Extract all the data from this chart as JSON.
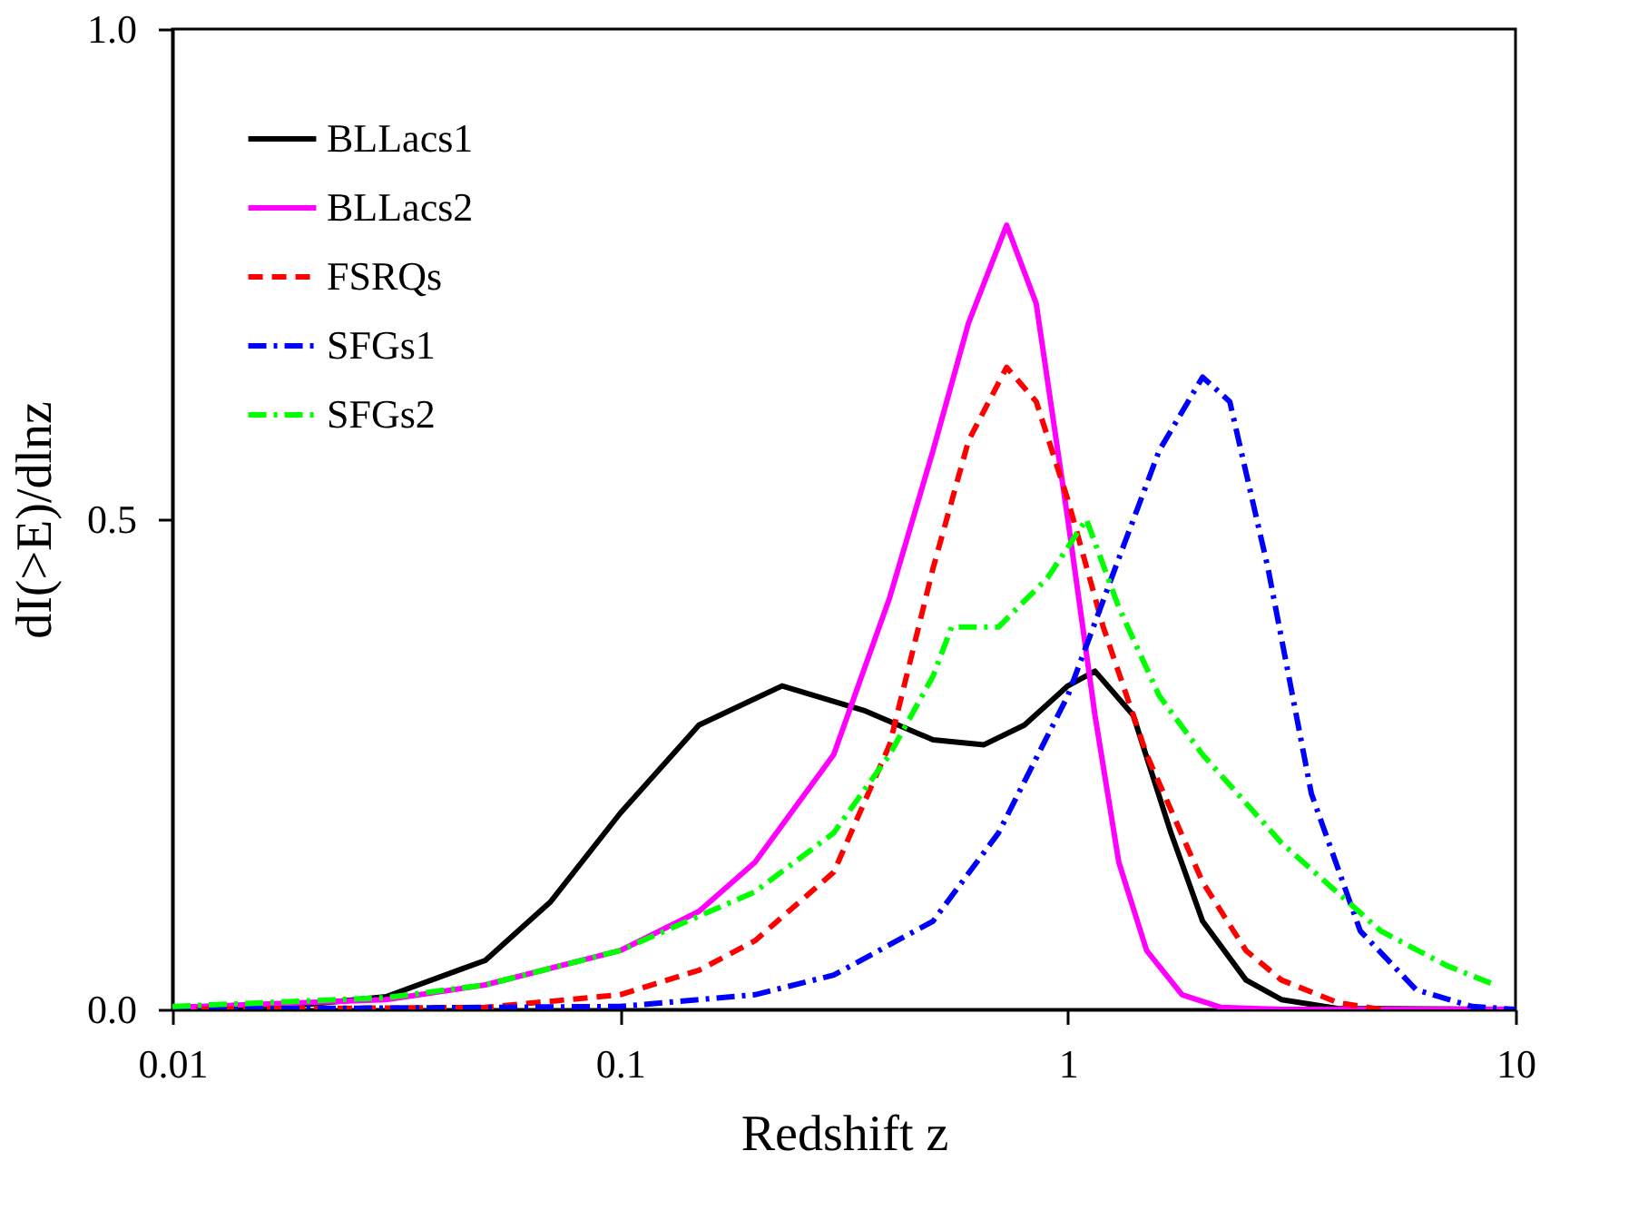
{
  "chart_data": {
    "type": "line",
    "xlabel": "Redshift z",
    "ylabel": "dI(>E)/dlnz",
    "log": "x",
    "xlim": [
      0.01,
      10
    ],
    "xticks": [
      0.01,
      0.1,
      1,
      10
    ],
    "ylim": [
      0,
      1.0
    ],
    "yticks": [
      {
        "value": 0,
        "label": "0.0"
      },
      {
        "value": 0.5,
        "label": "0.5"
      },
      {
        "value": 1.0,
        "label": "1.0"
      }
    ],
    "grid": false,
    "legend": "top left",
    "marker": "none",
    "series": [
      {
        "name": "BLLacs1",
        "color": "#000000",
        "line_style": "solid",
        "x": [
          0.01,
          0.02,
          0.03,
          0.05,
          0.07,
          0.1,
          0.15,
          0.23,
          0.35,
          0.5,
          0.65,
          0.8,
          1.0,
          1.15,
          1.4,
          1.7,
          2,
          2.5,
          3,
          4,
          10
        ],
        "values": [
          0.002,
          0.005,
          0.013,
          0.05,
          0.11,
          0.2,
          0.29,
          0.33,
          0.305,
          0.275,
          0.27,
          0.29,
          0.33,
          0.345,
          0.3,
          0.18,
          0.09,
          0.03,
          0.01,
          0.001,
          0
        ]
      },
      {
        "name": "BLLacs2",
        "color": "#ff00ff",
        "line_style": "solid",
        "x": [
          0.01,
          0.03,
          0.05,
          0.1,
          0.15,
          0.2,
          0.3,
          0.4,
          0.5,
          0.6,
          0.73,
          0.85,
          1.0,
          1.15,
          1.3,
          1.5,
          1.8,
          2.2,
          3,
          10
        ],
        "values": [
          0.002,
          0.01,
          0.025,
          0.06,
          0.1,
          0.15,
          0.26,
          0.42,
          0.57,
          0.7,
          0.8,
          0.72,
          0.5,
          0.3,
          0.15,
          0.06,
          0.015,
          0.002,
          0,
          0
        ]
      },
      {
        "name": "FSRQs",
        "color": "#ff0000",
        "line_style": "dashed",
        "x": [
          0.01,
          0.05,
          0.1,
          0.15,
          0.2,
          0.3,
          0.4,
          0.5,
          0.6,
          0.73,
          0.85,
          1.0,
          1.2,
          1.5,
          2,
          2.5,
          3,
          4,
          5
        ],
        "values": [
          0,
          0.002,
          0.015,
          0.04,
          0.07,
          0.14,
          0.27,
          0.45,
          0.58,
          0.655,
          0.62,
          0.52,
          0.39,
          0.26,
          0.13,
          0.06,
          0.03,
          0.007,
          0
        ]
      },
      {
        "name": "SFGs1",
        "color": "#0000ff",
        "line_style": "dashdot",
        "x": [
          0.01,
          0.1,
          0.2,
          0.3,
          0.5,
          0.7,
          1.0,
          1.3,
          1.6,
          2.0,
          2.3,
          2.8,
          3.5,
          4.5,
          6,
          8,
          10
        ],
        "values": [
          0,
          0.003,
          0.015,
          0.035,
          0.09,
          0.18,
          0.32,
          0.46,
          0.57,
          0.645,
          0.62,
          0.45,
          0.22,
          0.08,
          0.02,
          0.003,
          0
        ]
      },
      {
        "name": "SFGs2",
        "color": "#00ff00",
        "line_style": "dashdot",
        "x": [
          0.01,
          0.03,
          0.05,
          0.1,
          0.2,
          0.3,
          0.4,
          0.5,
          0.55,
          0.7,
          0.9,
          1.1,
          1.3,
          1.6,
          2,
          3,
          5,
          7,
          9
        ],
        "values": [
          0.003,
          0.012,
          0.025,
          0.06,
          0.12,
          0.18,
          0.26,
          0.34,
          0.39,
          0.39,
          0.44,
          0.5,
          0.41,
          0.32,
          0.26,
          0.17,
          0.08,
          0.045,
          0.025
        ]
      }
    ]
  }
}
